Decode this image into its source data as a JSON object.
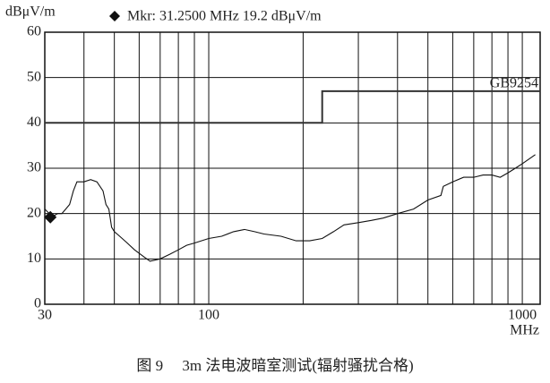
{
  "chart_data": {
    "type": "line",
    "y_label": "dBμV/m",
    "x_label": "MHz",
    "marker_text": "Mkr: 31.2500 MHz  19.2  dBμV/m",
    "marker": {
      "x": 31.25,
      "y": 19.2
    },
    "xlim": [
      30,
      1140
    ],
    "ylim": [
      0,
      60
    ],
    "xscale": "log",
    "xticks": [
      30,
      100,
      1000
    ],
    "xminor": [
      40,
      50,
      60,
      70,
      80,
      90,
      200,
      300,
      400,
      500,
      600,
      700,
      800,
      900
    ],
    "yticks": [
      0,
      10,
      20,
      30,
      40,
      50,
      60
    ],
    "grid": true,
    "series": [
      {
        "name": "GB9254",
        "color": "#333333",
        "x": [
          30,
          230,
          230,
          1140
        ],
        "values": [
          40,
          40,
          47,
          47
        ]
      },
      {
        "color": "#111111",
        "x": [
          30,
          31,
          32,
          33,
          34,
          35,
          36,
          37,
          38,
          40,
          42,
          44,
          46,
          47,
          48,
          49,
          50,
          52,
          55,
          58,
          62,
          65,
          70,
          75,
          80,
          85,
          90,
          100,
          110,
          120,
          130,
          140,
          150,
          170,
          190,
          210,
          230,
          250,
          270,
          300,
          330,
          360,
          400,
          450,
          500,
          550,
          560,
          600,
          650,
          700,
          750,
          800,
          850,
          900,
          950,
          1000,
          1100
        ],
        "values": [
          21,
          20,
          19.5,
          20,
          20,
          21,
          22,
          25,
          27,
          27,
          27.5,
          27,
          25,
          22,
          21,
          17,
          16,
          15,
          13.5,
          12,
          10.5,
          9.5,
          10,
          11,
          12,
          13,
          13.5,
          14.5,
          15,
          16,
          16.5,
          16,
          15.5,
          15,
          14,
          14,
          14.5,
          16,
          17.5,
          18,
          18.5,
          19,
          20,
          21,
          23,
          24,
          26,
          27,
          28,
          28,
          28.5,
          28.5,
          28,
          29,
          30,
          31,
          33
        ]
      }
    ]
  },
  "caption": "图 9　 3m 法电波暗室测试(辐射骚扰合格)"
}
